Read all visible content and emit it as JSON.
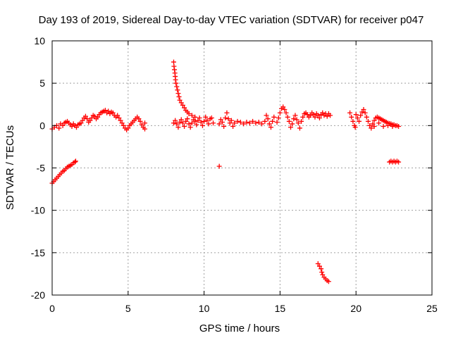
{
  "chart_data": {
    "type": "scatter",
    "title": "Day 193 of 2019, Sidereal Day-to-day VTEC variation (SDTVAR) for receiver p047",
    "xlabel": "GPS time / hours",
    "ylabel": "SDTVAR / TECUs",
    "xlim": [
      0,
      25
    ],
    "ylim": [
      -20,
      10
    ],
    "xticks": [
      0,
      5,
      10,
      15,
      20,
      25
    ],
    "yticks": [
      -20,
      -15,
      -10,
      -5,
      0,
      5,
      10
    ],
    "xtick_labels": [
      "0",
      "5",
      "10",
      "15",
      "20",
      "25"
    ],
    "ytick_labels": [
      "-20",
      "-15",
      "-10",
      "-5",
      "0",
      "5",
      "10"
    ],
    "grid": true,
    "marker": "+",
    "color": "#ff0000",
    "series": [
      {
        "name": "SDTVAR",
        "points": [
          [
            0.0,
            -6.8
          ],
          [
            0.1,
            -6.6
          ],
          [
            0.2,
            -6.4
          ],
          [
            0.3,
            -6.2
          ],
          [
            0.4,
            -6.0
          ],
          [
            0.5,
            -5.8
          ],
          [
            0.6,
            -5.6
          ],
          [
            0.7,
            -5.4
          ],
          [
            0.8,
            -5.3
          ],
          [
            0.9,
            -5.1
          ],
          [
            1.0,
            -4.9
          ],
          [
            1.1,
            -4.8
          ],
          [
            1.2,
            -4.7
          ],
          [
            1.3,
            -4.6
          ],
          [
            1.4,
            -4.4
          ],
          [
            1.5,
            -4.3
          ],
          [
            1.55,
            -4.2
          ],
          [
            0.0,
            -0.4
          ],
          [
            0.15,
            -0.2
          ],
          [
            0.3,
            0.0
          ],
          [
            0.45,
            -0.3
          ],
          [
            0.55,
            0.2
          ],
          [
            0.7,
            0.0
          ],
          [
            0.8,
            0.3
          ],
          [
            0.9,
            0.4
          ],
          [
            1.0,
            0.5
          ],
          [
            1.1,
            0.3
          ],
          [
            1.2,
            0.1
          ],
          [
            1.3,
            -0.1
          ],
          [
            1.4,
            0.2
          ],
          [
            1.5,
            0.0
          ],
          [
            1.6,
            -0.2
          ],
          [
            1.7,
            0.1
          ],
          [
            1.8,
            0.2
          ],
          [
            1.9,
            0.3
          ],
          [
            2.0,
            0.6
          ],
          [
            2.1,
            0.9
          ],
          [
            2.2,
            1.1
          ],
          [
            2.3,
            0.8
          ],
          [
            2.4,
            0.4
          ],
          [
            2.5,
            0.6
          ],
          [
            2.6,
            0.9
          ],
          [
            2.7,
            1.2
          ],
          [
            2.8,
            1.1
          ],
          [
            2.9,
            0.8
          ],
          [
            3.0,
            1.0
          ],
          [
            3.1,
            1.3
          ],
          [
            3.2,
            1.5
          ],
          [
            3.3,
            1.6
          ],
          [
            3.4,
            1.7
          ],
          [
            3.5,
            1.8
          ],
          [
            3.6,
            1.5
          ],
          [
            3.7,
            1.7
          ],
          [
            3.8,
            1.4
          ],
          [
            3.9,
            1.6
          ],
          [
            4.0,
            1.5
          ],
          [
            4.1,
            1.2
          ],
          [
            4.2,
            1.0
          ],
          [
            4.3,
            1.2
          ],
          [
            4.4,
            0.9
          ],
          [
            4.5,
            0.6
          ],
          [
            4.6,
            0.3
          ],
          [
            4.7,
            0.0
          ],
          [
            4.8,
            -0.3
          ],
          [
            4.9,
            -0.5
          ],
          [
            5.0,
            -0.3
          ],
          [
            5.1,
            0.0
          ],
          [
            5.2,
            0.2
          ],
          [
            5.3,
            0.4
          ],
          [
            5.4,
            0.6
          ],
          [
            5.5,
            0.8
          ],
          [
            5.6,
            1.0
          ],
          [
            5.7,
            0.8
          ],
          [
            5.8,
            0.5
          ],
          [
            5.9,
            0.1
          ],
          [
            6.0,
            -0.2
          ],
          [
            6.1,
            -0.4
          ],
          [
            6.1,
            0.3
          ],
          [
            8.0,
            7.5
          ],
          [
            8.02,
            7.0
          ],
          [
            8.05,
            6.6
          ],
          [
            8.08,
            6.2
          ],
          [
            8.1,
            5.8
          ],
          [
            8.12,
            5.4
          ],
          [
            8.15,
            5.0
          ],
          [
            8.2,
            4.6
          ],
          [
            8.25,
            4.2
          ],
          [
            8.3,
            3.8
          ],
          [
            8.35,
            3.4
          ],
          [
            8.4,
            3.0
          ],
          [
            8.5,
            2.7
          ],
          [
            8.6,
            2.4
          ],
          [
            8.7,
            2.1
          ],
          [
            8.8,
            1.8
          ],
          [
            8.9,
            1.6
          ],
          [
            9.0,
            1.4
          ],
          [
            9.2,
            1.2
          ],
          [
            9.4,
            1.0
          ],
          [
            8.0,
            0.3
          ],
          [
            8.1,
            0.6
          ],
          [
            8.2,
            0.2
          ],
          [
            8.3,
            -0.2
          ],
          [
            8.4,
            0.4
          ],
          [
            8.5,
            0.7
          ],
          [
            8.6,
            0.3
          ],
          [
            8.7,
            -0.1
          ],
          [
            8.8,
            0.5
          ],
          [
            8.9,
            0.8
          ],
          [
            9.0,
            0.2
          ],
          [
            9.1,
            -0.2
          ],
          [
            9.2,
            0.3
          ],
          [
            9.3,
            0.7
          ],
          [
            9.4,
            0.5
          ],
          [
            9.5,
            0.1
          ],
          [
            9.6,
            0.6
          ],
          [
            9.7,
            0.9
          ],
          [
            9.8,
            0.4
          ],
          [
            9.9,
            0.0
          ],
          [
            10.0,
            0.5
          ],
          [
            10.1,
            1.0
          ],
          [
            10.2,
            0.6
          ],
          [
            10.3,
            0.2
          ],
          [
            10.4,
            0.8
          ],
          [
            10.5,
            0.9
          ],
          [
            10.6,
            0.3
          ],
          [
            11.0,
            -4.8
          ],
          [
            11.0,
            0.2
          ],
          [
            11.1,
            0.7
          ],
          [
            11.2,
            0.4
          ],
          [
            11.3,
            -0.1
          ],
          [
            11.4,
            0.9
          ],
          [
            11.5,
            1.5
          ],
          [
            11.6,
            0.8
          ],
          [
            11.7,
            0.3
          ],
          [
            11.8,
            0.6
          ],
          [
            11.9,
            -0.1
          ],
          [
            12.0,
            0.3
          ],
          [
            12.2,
            0.5
          ],
          [
            12.4,
            0.4
          ],
          [
            12.6,
            0.2
          ],
          [
            12.8,
            0.4
          ],
          [
            13.0,
            0.3
          ],
          [
            13.2,
            0.5
          ],
          [
            13.4,
            0.3
          ],
          [
            13.6,
            0.4
          ],
          [
            13.8,
            0.2
          ],
          [
            14.0,
            0.5
          ],
          [
            14.1,
            1.2
          ],
          [
            14.2,
            0.8
          ],
          [
            14.3,
            0.2
          ],
          [
            14.4,
            -0.2
          ],
          [
            14.5,
            0.5
          ],
          [
            14.6,
            1.0
          ],
          [
            14.8,
            0.4
          ],
          [
            14.9,
            0.9
          ],
          [
            15.0,
            1.5
          ],
          [
            15.1,
            2.0
          ],
          [
            15.2,
            2.2
          ],
          [
            15.3,
            1.9
          ],
          [
            15.4,
            1.5
          ],
          [
            15.5,
            1.0
          ],
          [
            15.6,
            0.5
          ],
          [
            15.7,
            -0.2
          ],
          [
            15.8,
            0.2
          ],
          [
            15.9,
            0.8
          ],
          [
            16.0,
            1.2
          ],
          [
            16.1,
            0.7
          ],
          [
            16.2,
            0.3
          ],
          [
            16.3,
            -0.3
          ],
          [
            16.4,
            0.5
          ],
          [
            16.5,
            1.0
          ],
          [
            16.6,
            1.4
          ],
          [
            16.7,
            1.5
          ],
          [
            16.8,
            1.3
          ],
          [
            16.9,
            1.0
          ],
          [
            17.0,
            1.2
          ],
          [
            17.1,
            1.5
          ],
          [
            17.2,
            1.3
          ],
          [
            17.3,
            1.0
          ],
          [
            17.4,
            1.4
          ],
          [
            17.5,
            1.2
          ],
          [
            17.6,
            0.9
          ],
          [
            17.7,
            1.3
          ],
          [
            17.8,
            1.5
          ],
          [
            17.9,
            1.2
          ],
          [
            18.0,
            1.4
          ],
          [
            18.1,
            1.1
          ],
          [
            18.2,
            1.4
          ],
          [
            18.3,
            1.2
          ],
          [
            17.5,
            -16.3
          ],
          [
            17.6,
            -16.6
          ],
          [
            17.7,
            -16.9
          ],
          [
            17.75,
            -17.3
          ],
          [
            17.8,
            -17.6
          ],
          [
            17.9,
            -17.9
          ],
          [
            18.0,
            -18.1
          ],
          [
            18.1,
            -18.3
          ],
          [
            18.2,
            -18.4
          ],
          [
            19.6,
            1.5
          ],
          [
            19.7,
            1.0
          ],
          [
            19.8,
            0.5
          ],
          [
            19.9,
            0.0
          ],
          [
            19.95,
            -0.2
          ],
          [
            20.0,
            1.3
          ],
          [
            20.1,
            0.9
          ],
          [
            20.2,
            0.5
          ],
          [
            20.3,
            1.2
          ],
          [
            20.4,
            1.6
          ],
          [
            20.5,
            1.9
          ],
          [
            20.6,
            1.5
          ],
          [
            20.7,
            1.0
          ],
          [
            20.8,
            0.5
          ],
          [
            20.9,
            0.0
          ],
          [
            21.0,
            -0.3
          ],
          [
            21.1,
            0.2
          ],
          [
            21.2,
            0.6
          ],
          [
            21.3,
            0.9
          ],
          [
            21.4,
            1.0
          ],
          [
            21.5,
            0.9
          ],
          [
            21.6,
            0.8
          ],
          [
            21.7,
            0.7
          ],
          [
            21.8,
            0.6
          ],
          [
            21.9,
            0.5
          ],
          [
            22.0,
            0.4
          ],
          [
            22.1,
            0.3
          ],
          [
            22.2,
            0.25
          ],
          [
            22.3,
            0.2
          ],
          [
            22.4,
            0.1
          ],
          [
            22.5,
            0.1
          ],
          [
            22.6,
            0.0
          ],
          [
            22.7,
            0.0
          ],
          [
            22.8,
            -0.1
          ],
          [
            21.2,
            -0.1
          ],
          [
            21.5,
            0.3
          ],
          [
            21.8,
            -0.1
          ],
          [
            22.1,
            0.0
          ],
          [
            22.4,
            -0.1
          ],
          [
            22.2,
            -4.3
          ],
          [
            22.3,
            -4.2
          ],
          [
            22.4,
            -4.3
          ],
          [
            22.5,
            -4.2
          ],
          [
            22.6,
            -4.3
          ],
          [
            22.7,
            -4.2
          ],
          [
            22.8,
            -4.3
          ]
        ]
      }
    ]
  }
}
